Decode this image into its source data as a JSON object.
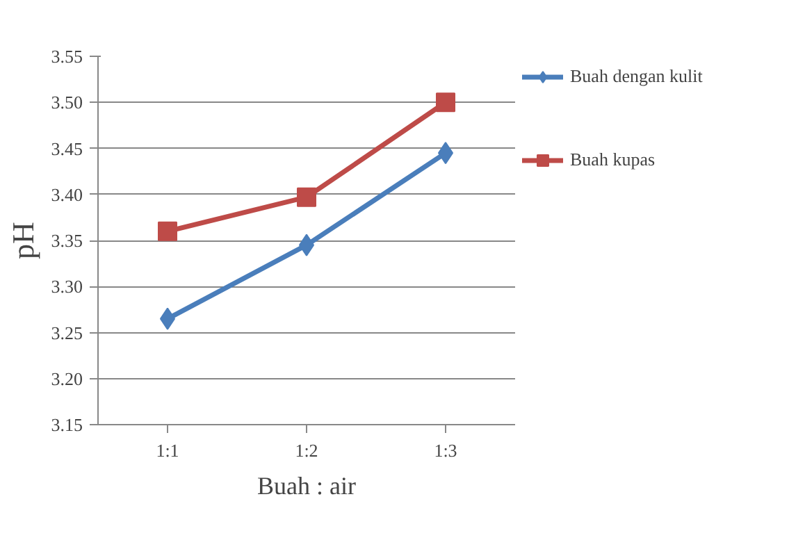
{
  "chart_data": {
    "type": "line",
    "xlabel": "Buah : air",
    "ylabel": "pH",
    "categories": [
      "1:1",
      "1:2",
      "1:3"
    ],
    "series": [
      {
        "name": "Buah dengan kulit",
        "color": "#4a7ebb",
        "marker": "diamond",
        "values": [
          3.265,
          3.345,
          3.445
        ]
      },
      {
        "name": "Buah kupas",
        "color": "#be4b48",
        "marker": "square",
        "values": [
          3.36,
          3.397,
          3.5
        ]
      }
    ],
    "ylim": [
      3.15,
      3.55
    ],
    "yticks": [
      {
        "value": 3.15,
        "label": "3.15"
      },
      {
        "value": 3.2,
        "label": "3.20"
      },
      {
        "value": 3.25,
        "label": "3.25"
      },
      {
        "value": 3.3,
        "label": "3.30"
      },
      {
        "value": 3.35,
        "label": "3.35"
      },
      {
        "value": 3.4,
        "label": "3.40"
      },
      {
        "value": 3.45,
        "label": "3.45"
      },
      {
        "value": 3.5,
        "label": "3.50"
      },
      {
        "value": 3.55,
        "label": "3.55"
      }
    ],
    "grid": "y",
    "legend": "right",
    "line_style": "solid"
  }
}
